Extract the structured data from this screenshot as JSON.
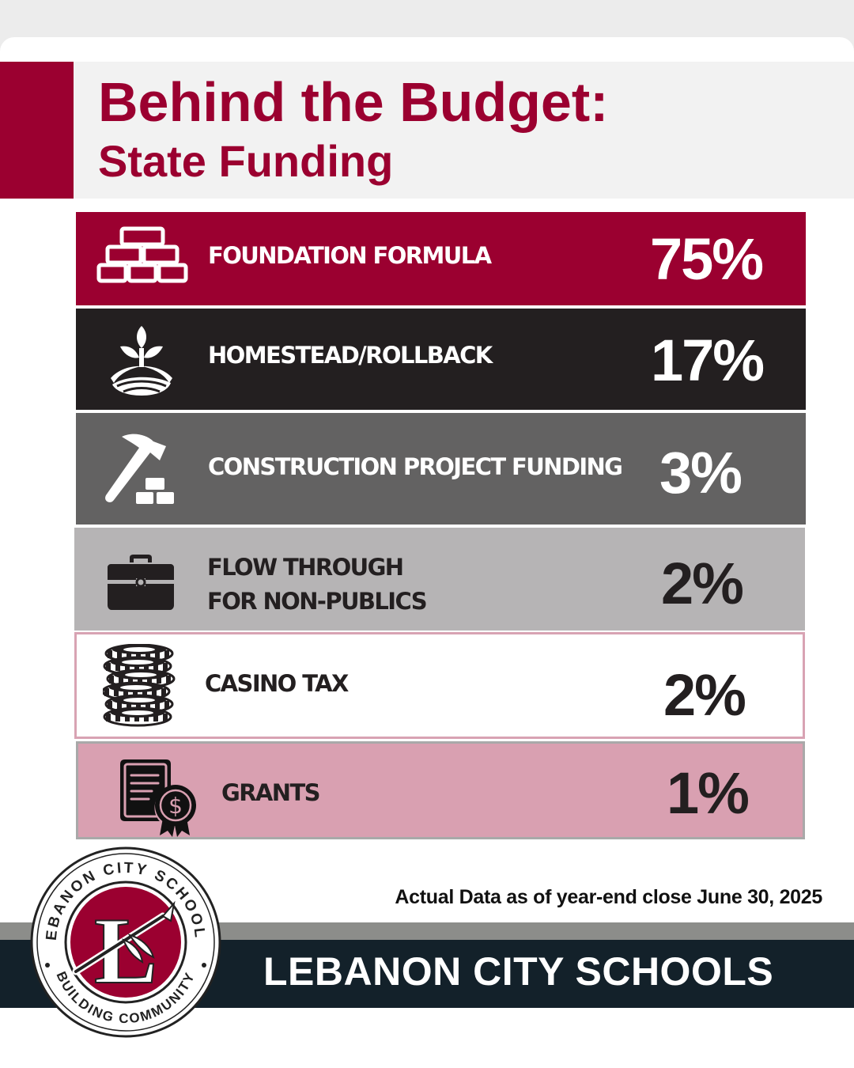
{
  "header": {
    "title": "Behind the Budget:",
    "subtitle": "State Funding",
    "accent_color": "#9b0030"
  },
  "funding_items": [
    {
      "label": "FOUNDATION FORMULA",
      "percent": "75%",
      "icon": "bricks-icon",
      "bg": "#9b0030"
    },
    {
      "label": "HOMESTEAD/ROLLBACK",
      "percent": "17%",
      "icon": "sprout-field-icon",
      "bg": "#231f20"
    },
    {
      "label": "CONSTRUCTION PROJECT FUNDING",
      "percent": "3%",
      "icon": "hammer-bricks-icon",
      "bg": "#636262"
    },
    {
      "label_line1": "FLOW THROUGH",
      "label_line2": "FOR NON-PUBLICS",
      "percent": "2%",
      "icon": "briefcase-icon",
      "bg": "#b6b4b5"
    },
    {
      "label": "CASINO TAX",
      "percent": "2%",
      "icon": "casino-chips-icon",
      "bg": "#ffffff"
    },
    {
      "label": "GRANTS",
      "percent": "1%",
      "icon": "certificate-dollar-icon",
      "bg": "#d9a0b1"
    }
  ],
  "footnote": "Actual Data as of year-end close June 30, 2025",
  "footer": {
    "organization": "LEBANON CITY SCHOOLS"
  },
  "logo": {
    "top_text": "LEBANON CITY SCHOOLS",
    "bottom_text": "BUILDING COMMUNITY",
    "letter": "L"
  }
}
